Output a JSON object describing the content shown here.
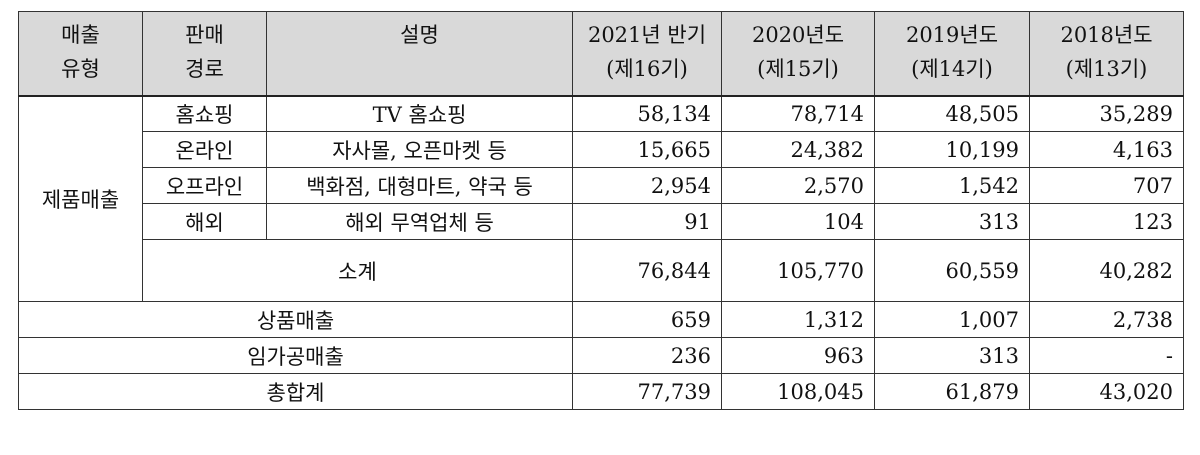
{
  "header": {
    "type": [
      "매출",
      "유형"
    ],
    "route": [
      "판매",
      "경로"
    ],
    "desc": "설명",
    "periods": [
      {
        "line1": "2021년 반기",
        "line2": "(제16기)"
      },
      {
        "line1": "2020년도",
        "line2": "(제15기)"
      },
      {
        "line1": "2019년도",
        "line2": "(제14기)"
      },
      {
        "line1": "2018년도",
        "line2": "(제13기)"
      }
    ]
  },
  "product_sales": {
    "label": "제품매출",
    "rows": [
      {
        "route": "홈쇼핑",
        "desc": "TV 홈쇼핑",
        "values": [
          "58,134",
          "78,714",
          "48,505",
          "35,289"
        ]
      },
      {
        "route": "온라인",
        "desc": "자사몰, 오픈마켓 등",
        "values": [
          "15,665",
          "24,382",
          "10,199",
          "4,163"
        ]
      },
      {
        "route": "오프라인",
        "desc": "백화점, 대형마트, 약국 등",
        "values": [
          "2,954",
          "2,570",
          "1,542",
          "707"
        ]
      },
      {
        "route": "해외",
        "desc": "해외 무역업체 등",
        "values": [
          "91",
          "104",
          "313",
          "123"
        ]
      }
    ],
    "subtotal": {
      "label": "소계",
      "values": [
        "76,844",
        "105,770",
        "60,559",
        "40,282"
      ]
    }
  },
  "merchandise": {
    "label": "상품매출",
    "values": [
      "659",
      "1,312",
      "1,007",
      "2,738"
    ]
  },
  "processing": {
    "label": "임가공매출",
    "values": [
      "236",
      "963",
      "313",
      "-"
    ]
  },
  "total": {
    "label": "총합계",
    "values": [
      "77,739",
      "108,045",
      "61,879",
      "43,020"
    ]
  }
}
